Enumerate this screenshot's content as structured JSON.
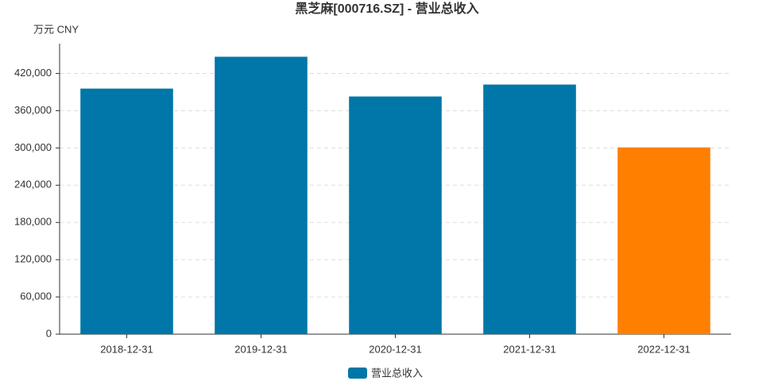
{
  "chart_data": {
    "type": "bar",
    "title": "黑芝麻[000716.SZ] - 营业总收入",
    "y_axis_label": "万元  CNY",
    "categories": [
      "2018-12-31",
      "2019-12-31",
      "2020-12-31",
      "2021-12-31",
      "2022-12-31"
    ],
    "series": [
      {
        "name": "营业总收入",
        "color": "#0077a8",
        "values": [
          395600,
          446900,
          382900,
          402100,
          300900
        ]
      }
    ],
    "bar_colors": [
      "#0077a8",
      "#0077a8",
      "#0077a8",
      "#0077a8",
      "#ff7f00"
    ],
    "ylim": [
      0,
      468000
    ],
    "yticks": [
      0,
      {
        "value": 60000,
        "label": "60,000"
      },
      {
        "value": 120000,
        "label": "120,000"
      },
      {
        "value": 180000,
        "label": "180,000"
      },
      {
        "value": 240000,
        "label": "240,000"
      },
      {
        "value": 300000,
        "label": "300,000"
      },
      {
        "value": 360000,
        "label": "360,000"
      },
      {
        "value": 420000,
        "label": "420,000"
      }
    ],
    "grid": true
  }
}
